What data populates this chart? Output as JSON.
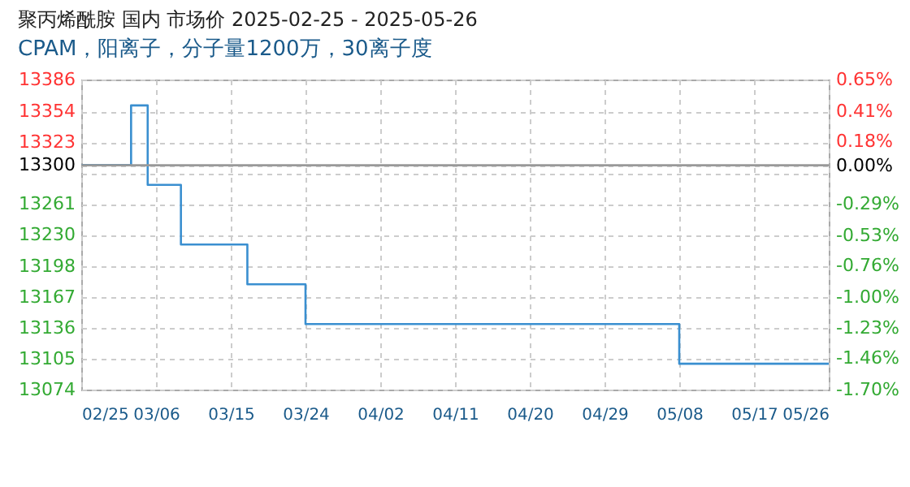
{
  "chart_data": {
    "type": "step",
    "title": "聚丙烯酰胺 国内 市场价 2025-02-25 - 2025-05-26",
    "subtitle": "CPAM，阳离子，分子量1200万，30离子度",
    "x": [
      "2025-02-25",
      "2025-03-02",
      "2025-03-03",
      "2025-03-04",
      "2025-03-05",
      "2025-03-08",
      "2025-03-09",
      "2025-03-16",
      "2025-03-17",
      "2025-03-23",
      "2025-03-24",
      "2025-05-07",
      "2025-05-08",
      "2025-05-26"
    ],
    "series": [
      {
        "color": "#3a8fd0",
        "values": [
          13300,
          13300,
          13360,
          13360,
          13280,
          13280,
          13220,
          13220,
          13180,
          13180,
          13140,
          13140,
          13100,
          13100
        ]
      }
    ],
    "xlim": [
      "2025-02-25",
      "2025-05-26"
    ],
    "xticks": [
      {
        "value": "2025-02-25",
        "label": "02/25"
      },
      {
        "value": "2025-03-06",
        "label": "03/06"
      },
      {
        "value": "2025-03-15",
        "label": "03/15"
      },
      {
        "value": "2025-03-24",
        "label": "03/24"
      },
      {
        "value": "2025-04-02",
        "label": "04/02"
      },
      {
        "value": "2025-04-11",
        "label": "04/11"
      },
      {
        "value": "2025-04-20",
        "label": "04/20"
      },
      {
        "value": "2025-04-29",
        "label": "04/29"
      },
      {
        "value": "2025-05-08",
        "label": "05/08"
      },
      {
        "value": "2025-05-17",
        "label": "05/17"
      },
      {
        "value": "2025-05-26",
        "label": "05/26"
      }
    ],
    "ylim": [
      13074,
      13386
    ],
    "yticks": [
      13074,
      13105,
      13136,
      13167,
      13198,
      13230,
      13261,
      {
        "value": 13292,
        "label": null
      },
      13300,
      13323,
      13354,
      13386
    ],
    "y2lim": [
      -1.7,
      0.65
    ],
    "y2ticks": [
      {
        "value": -1.7,
        "label": "-1.70%"
      },
      {
        "value": -1.46,
        "label": "-1.46%"
      },
      {
        "value": -1.23,
        "label": "-1.23%"
      },
      {
        "value": -1.0,
        "label": "-1.00%"
      },
      {
        "value": -0.76,
        "label": "-0.76%"
      },
      {
        "value": -0.53,
        "label": "-0.53%"
      },
      {
        "value": -0.29,
        "label": "-0.29%"
      },
      {
        "value": 0,
        "label": "0.00%"
      },
      {
        "value": 0.18,
        "label": "0.18%"
      },
      {
        "value": 0.41,
        "label": "0.41%"
      },
      {
        "value": 0.65,
        "label": "0.65%"
      }
    ],
    "ref_lines": [
      {
        "axis": "y2",
        "value": 0,
        "color": "#999999"
      }
    ],
    "grid": true,
    "legend": false,
    "marker": "none",
    "line_style": "solid"
  }
}
